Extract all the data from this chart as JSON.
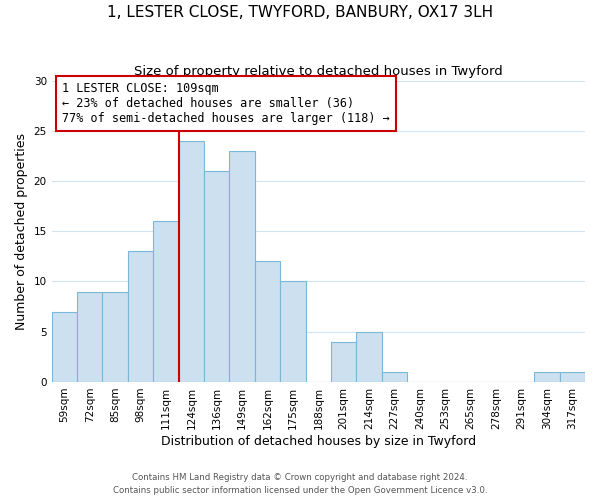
{
  "title": "1, LESTER CLOSE, TWYFORD, BANBURY, OX17 3LH",
  "subtitle": "Size of property relative to detached houses in Twyford",
  "xlabel": "Distribution of detached houses by size in Twyford",
  "ylabel": "Number of detached properties",
  "bin_labels": [
    "59sqm",
    "72sqm",
    "85sqm",
    "98sqm",
    "111sqm",
    "124sqm",
    "136sqm",
    "149sqm",
    "162sqm",
    "175sqm",
    "188sqm",
    "201sqm",
    "214sqm",
    "227sqm",
    "240sqm",
    "253sqm",
    "265sqm",
    "278sqm",
    "291sqm",
    "304sqm",
    "317sqm"
  ],
  "bar_heights": [
    7,
    9,
    9,
    13,
    16,
    24,
    21,
    23,
    12,
    10,
    0,
    4,
    5,
    1,
    0,
    0,
    0,
    0,
    0,
    1,
    1
  ],
  "bar_color": "#cce0f0",
  "bar_edge_color": "#7ab8d9",
  "vline_x_index": 4,
  "vline_color": "#cc0000",
  "annotation_line1": "1 LESTER CLOSE: 109sqm",
  "annotation_line2": "← 23% of detached houses are smaller (36)",
  "annotation_line3": "77% of semi-detached houses are larger (118) →",
  "annotation_box_color": "#cc0000",
  "ylim": [
    0,
    30
  ],
  "yticks": [
    0,
    5,
    10,
    15,
    20,
    25,
    30
  ],
  "footer_line1": "Contains HM Land Registry data © Crown copyright and database right 2024.",
  "footer_line2": "Contains public sector information licensed under the Open Government Licence v3.0.",
  "background_color": "#ffffff",
  "grid_color": "#d0e4f4",
  "title_fontsize": 11,
  "subtitle_fontsize": 9.5,
  "axis_label_fontsize": 9,
  "tick_fontsize": 7.5,
  "annotation_fontsize": 8.5
}
